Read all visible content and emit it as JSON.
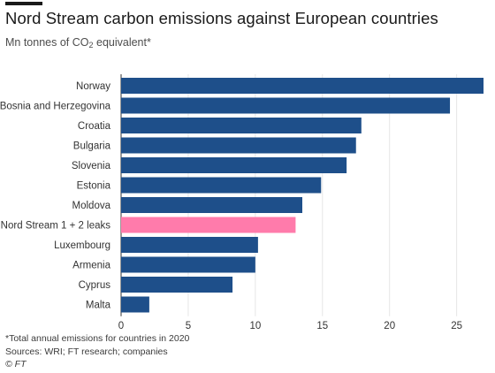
{
  "header": {
    "title": "Nord Stream carbon emissions against European countries",
    "subtitle_main": "Mn tonnes of CO",
    "subtitle_sub": "2",
    "subtitle_tail": " equivalent*"
  },
  "footer": {
    "note": "*Total annual emissions for countries in 2020",
    "sources": "Sources: WRI; FT research; companies",
    "credit": "© FT"
  },
  "colors": {
    "bar": "#1e4f8a",
    "highlight": "#ff7bab",
    "grid": "#e6e6e6",
    "axis": "#333333",
    "label": "#333333"
  },
  "chart_data": {
    "type": "bar",
    "orientation": "horizontal",
    "categories": [
      "Norway",
      "Bosnia and Herzegovina",
      "Croatia",
      "Bulgaria",
      "Slovenia",
      "Estonia",
      "Moldova",
      "Nord Stream 1 + 2 leaks",
      "Luxembourg",
      "Armenia",
      "Cyprus",
      "Malta"
    ],
    "values": [
      27.0,
      24.5,
      17.9,
      17.5,
      16.8,
      14.9,
      13.5,
      13.0,
      10.2,
      10.0,
      8.3,
      2.1
    ],
    "highlight": [
      "Nord Stream 1 + 2 leaks"
    ],
    "xlim": [
      0,
      27
    ],
    "xticks": [
      0,
      5,
      10,
      15,
      20,
      25
    ],
    "grid": true
  }
}
